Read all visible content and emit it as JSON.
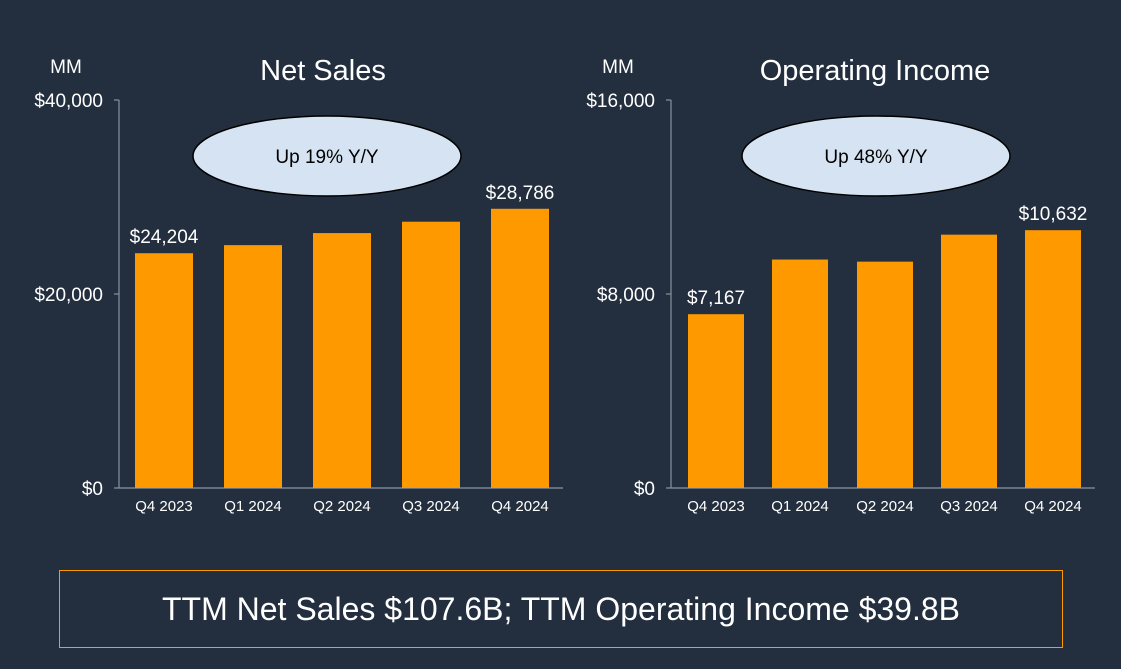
{
  "colors": {
    "background": "#232f3e",
    "bar": "#ff9900",
    "axis": "#8a939e",
    "oval_fill": "#d6e3f3",
    "oval_text": "#000000",
    "summary_border": "#ff9900"
  },
  "chart_data": [
    {
      "type": "bar",
      "title": "Net Sales",
      "unit_label": "MM",
      "categories": [
        "Q4 2023",
        "Q1 2024",
        "Q2 2024",
        "Q3 2024",
        "Q4 2024"
      ],
      "values": [
        24204,
        25037,
        26281,
        27452,
        28786
      ],
      "ylim": [
        0,
        40000
      ],
      "yticks": [
        0,
        20000,
        40000
      ],
      "ytick_labels": [
        "$0",
        "$20,000",
        "$40,000"
      ],
      "data_labels": [
        "$24,204",
        "",
        "",
        "",
        "$28,786"
      ],
      "callout": "Up 19% Y/Y",
      "grid": false
    },
    {
      "type": "bar",
      "title": "Operating Income",
      "unit_label": "MM",
      "categories": [
        "Q4 2023",
        "Q1 2024",
        "Q2 2024",
        "Q3 2024",
        "Q4 2024"
      ],
      "values": [
        7167,
        9421,
        9334,
        10447,
        10632
      ],
      "ylim": [
        0,
        16000
      ],
      "yticks": [
        0,
        8000,
        16000
      ],
      "ytick_labels": [
        "$0",
        "$8,000",
        "$16,000"
      ],
      "data_labels": [
        "$7,167",
        "",
        "",
        "",
        "$10,632"
      ],
      "callout": "Up 48% Y/Y",
      "grid": false
    }
  ],
  "summary": "TTM Net Sales $107.6B; TTM Operating Income $39.8B"
}
